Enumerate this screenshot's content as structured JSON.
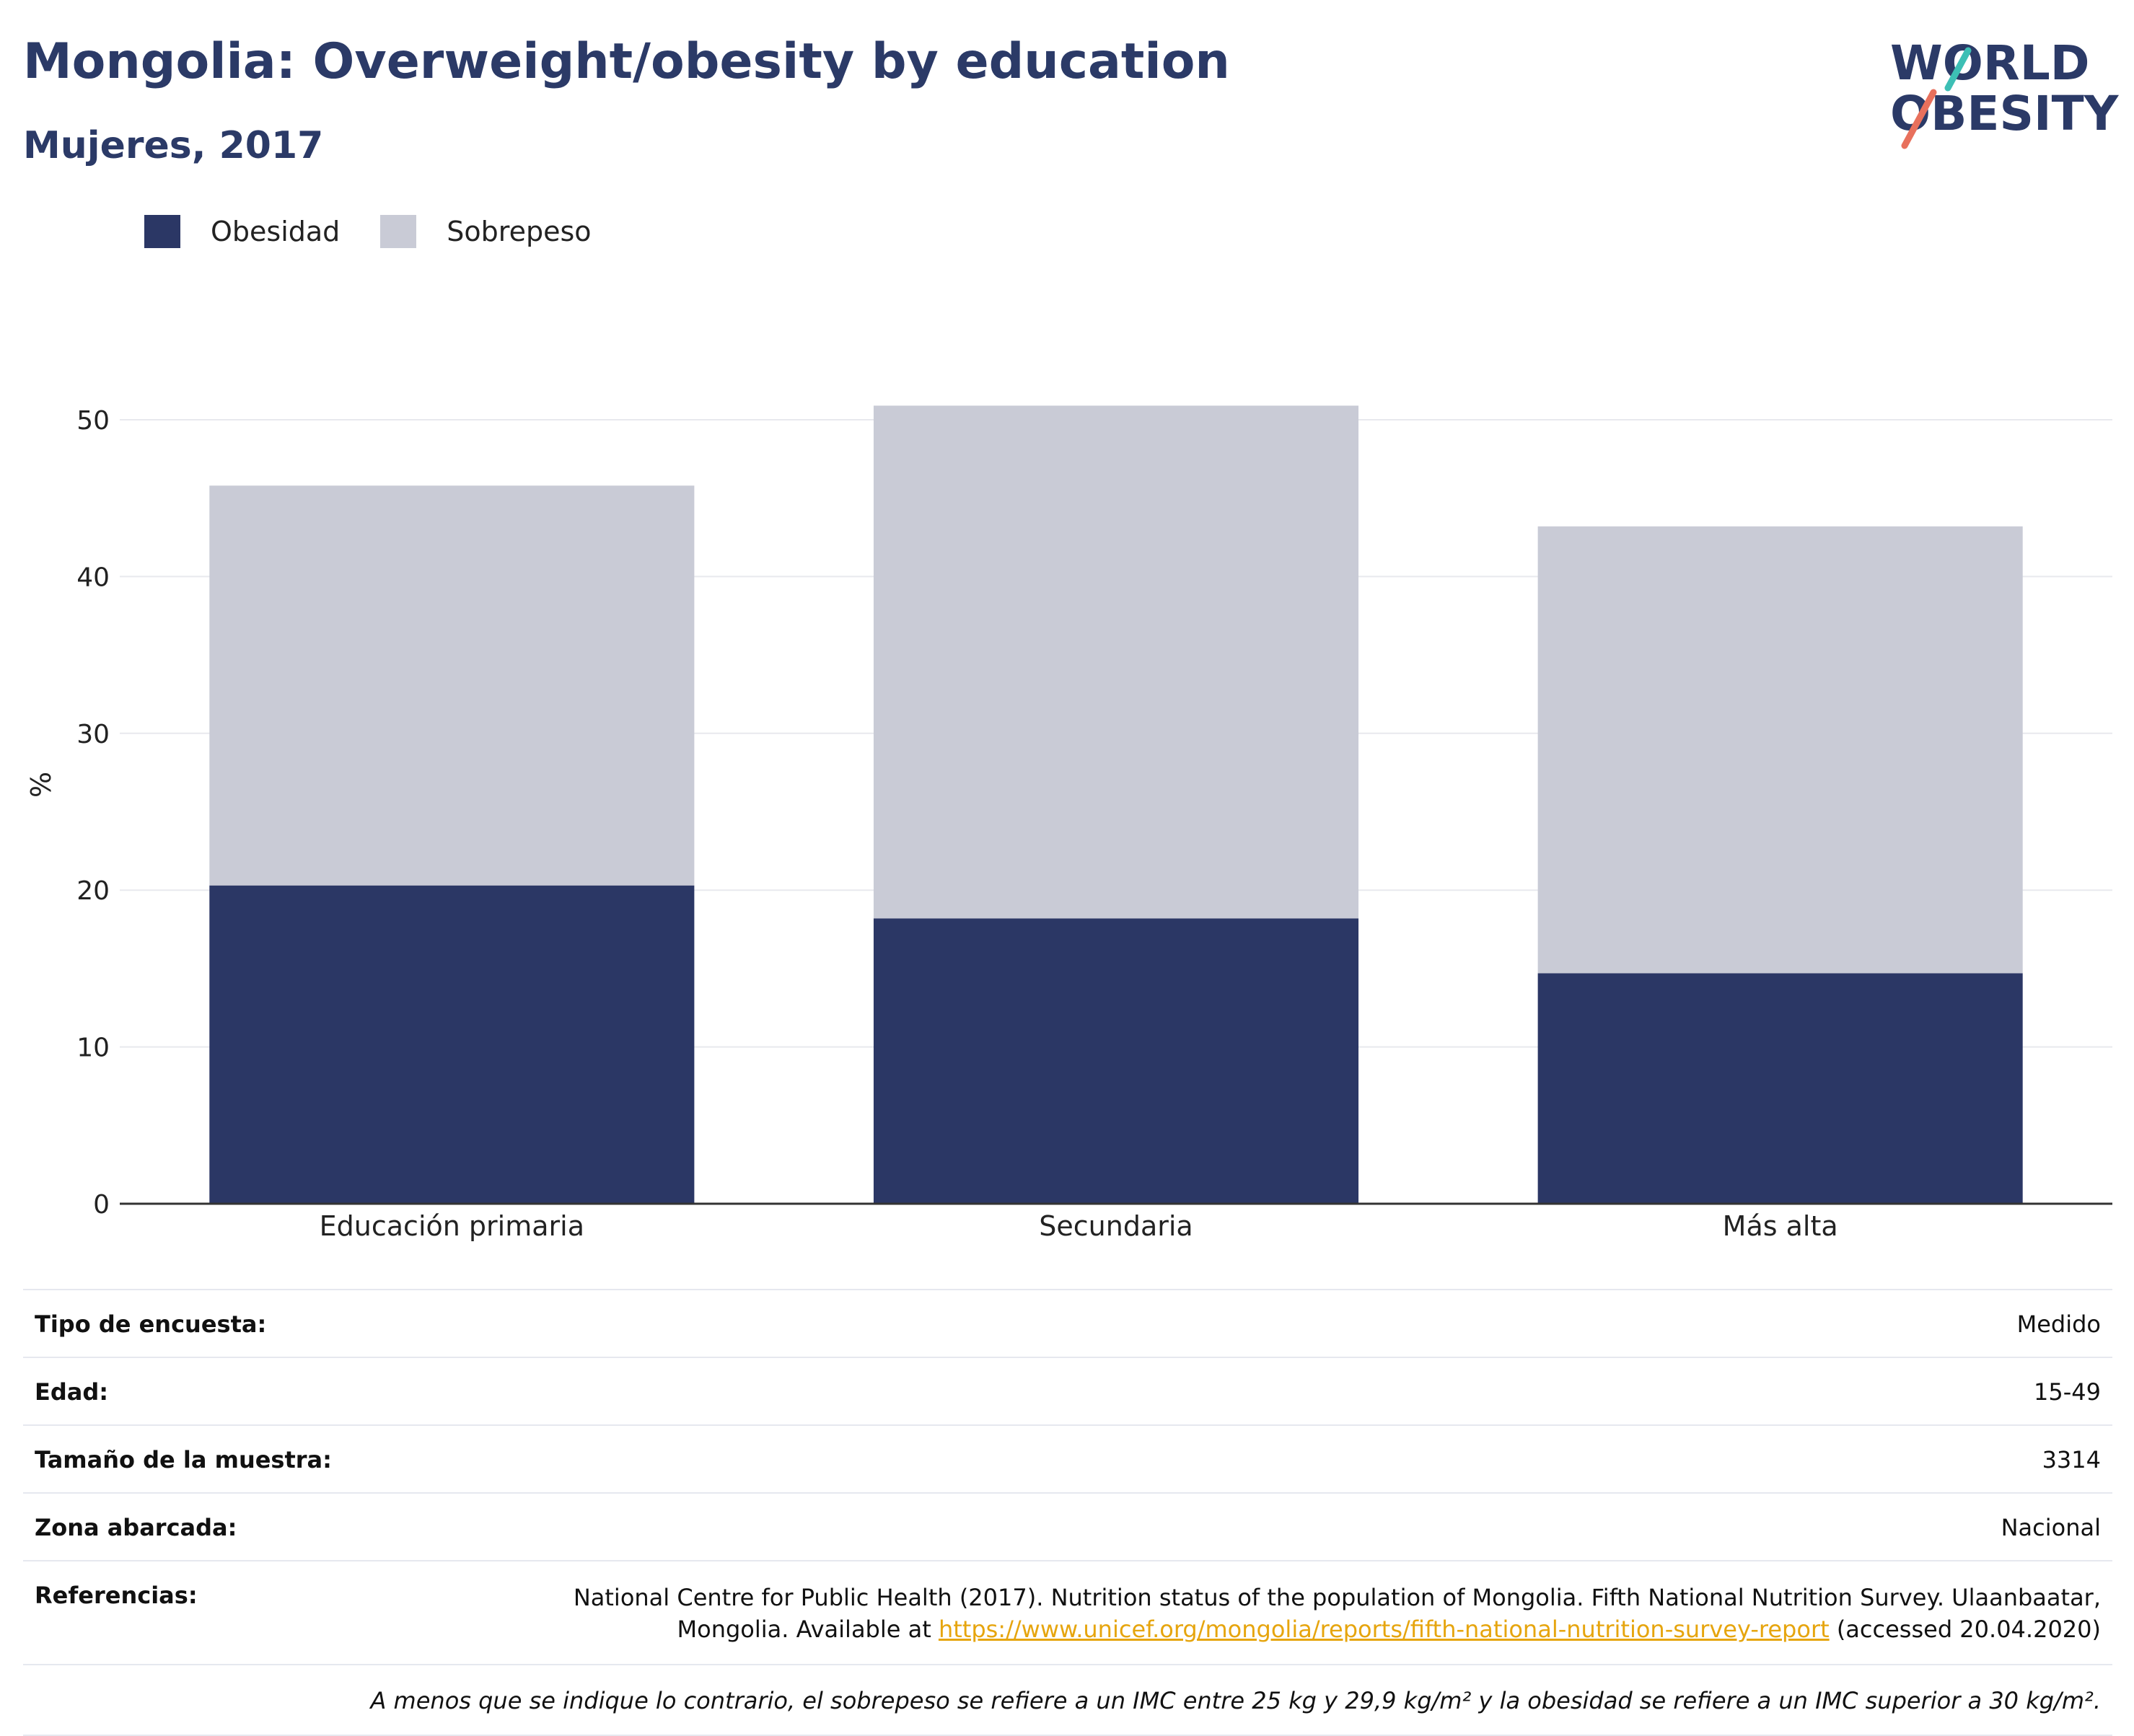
{
  "header": {
    "title": "Mongolia: Overweight/obesity by education",
    "subtitle": "Mujeres, 2017",
    "logo_line1": "WORLD",
    "logo_line2": "OBESITY"
  },
  "colors": {
    "obesidad": "#2b3765",
    "sobrepeso": "#c9cbd6",
    "title": "#2b3a67",
    "logo_teal": "#3dbfb5",
    "logo_coral": "#e8705c",
    "link": "#e6a50e"
  },
  "legend": {
    "items": [
      "Obesidad",
      "Sobrepeso"
    ]
  },
  "chart_data": {
    "type": "bar",
    "stacked": true,
    "categories": [
      "Educación primaria",
      "Secundaria",
      "Más alta"
    ],
    "series": [
      {
        "name": "Obesidad",
        "values": [
          20.3,
          18.2,
          14.7
        ]
      },
      {
        "name": "Sobrepeso",
        "values": [
          25.5,
          32.7,
          28.5
        ]
      }
    ],
    "title": "Mongolia: Overweight/obesity by education",
    "subtitle": "Mujeres, 2017",
    "xlabel": "",
    "ylabel": "%",
    "ylim": [
      0,
      55
    ],
    "yticks": [
      0,
      10,
      20,
      30,
      40,
      50
    ],
    "grid": true,
    "legend_position": "top-left"
  },
  "info": {
    "rows": [
      {
        "label": "Tipo de encuesta:",
        "value": "Medido"
      },
      {
        "label": "Edad:",
        "value": "15-49"
      },
      {
        "label": "Tamaño de la muestra:",
        "value": "3314"
      },
      {
        "label": "Zona abarcada:",
        "value": "Nacional"
      }
    ],
    "references_label": "Referencias:",
    "references_text_1": "National Centre for Public Health (2017). Nutrition status of the population of Mongolia. Fifth National Nutrition Survey. Ulaanbaatar,",
    "references_text_2": "Mongolia. Available at",
    "references_link": "https://www.unicef.org/mongolia/reports/fifth-national-nutrition-survey-report",
    "references_text_3": "(accessed 20.04.2020)",
    "note": "A menos que se indique lo contrario, el sobrepeso se refiere a un IMC entre 25 kg y 29,9 kg/m² y la obesidad se refiere a un IMC superior a 30 kg/m²."
  }
}
